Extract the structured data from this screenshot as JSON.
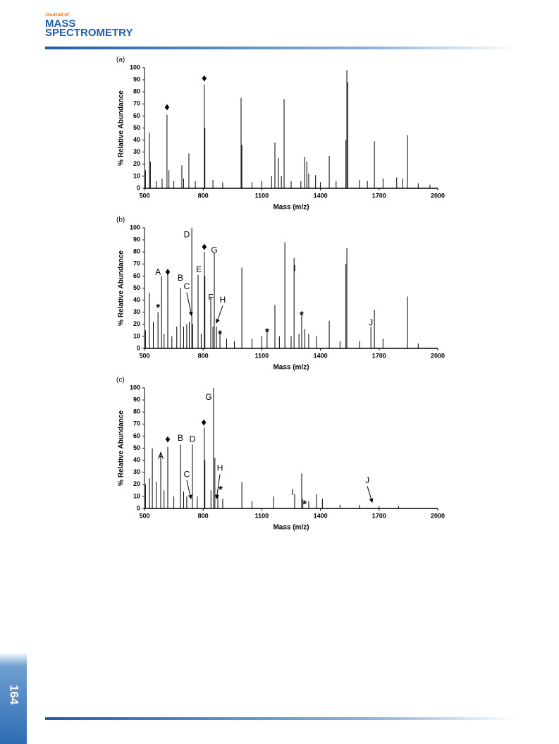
{
  "header": {
    "journal_of": "Journal of",
    "title_line1": "MASS",
    "title_line2": "SPECTROMETRY"
  },
  "page_number": "164",
  "chart_data": [
    {
      "type": "bar",
      "title": "(a)",
      "x_label": "Mass (m/z)",
      "y_label": "% Relative Abundance",
      "color": "#000000",
      "xlim": [
        500,
        2000
      ],
      "xticks": [
        500,
        800,
        1100,
        1400,
        1700,
        2000
      ],
      "ylim": [
        0,
        100
      ],
      "yticks": [
        0,
        10,
        20,
        30,
        40,
        50,
        60,
        70,
        80,
        90,
        100
      ],
      "x": [
        505,
        525,
        530,
        560,
        590,
        615,
        625,
        650,
        691,
        700,
        727,
        760,
        806,
        809,
        850,
        900,
        994,
        998,
        1050,
        1100,
        1150,
        1167,
        1185,
        1200,
        1214,
        1250,
        1300,
        1319,
        1330,
        1340,
        1375,
        1400,
        1445,
        1480,
        1530,
        1535,
        1540,
        1600,
        1640,
        1676,
        1720,
        1790,
        1820,
        1845,
        1900,
        1960
      ],
      "values": [
        15,
        46,
        22,
        6,
        8,
        61,
        15,
        6,
        19,
        8,
        29,
        6,
        86,
        50,
        7,
        5,
        75,
        36,
        5,
        6,
        10,
        38,
        25,
        10,
        74,
        6,
        6,
        26,
        22,
        12,
        11,
        5,
        27,
        6,
        40,
        98,
        88,
        7,
        6,
        39,
        8,
        9,
        8,
        44,
        4,
        3
      ],
      "annotations": [
        {
          "text": "♦",
          "x": 615,
          "y": 67
        },
        {
          "text": "♦",
          "x": 806,
          "y": 91
        }
      ]
    },
    {
      "type": "bar",
      "title": "(b)",
      "x_label": "Mass (m/z)",
      "y_label": "% Relative Abundance",
      "color": "#000000",
      "xlim": [
        500,
        2000
      ],
      "xticks": [
        500,
        800,
        1100,
        1400,
        1700,
        2000
      ],
      "ylim": [
        0,
        100
      ],
      "yticks": [
        0,
        10,
        20,
        30,
        40,
        50,
        60,
        70,
        80,
        90,
        100
      ],
      "x": [
        505,
        525,
        545,
        569,
        587,
        600,
        619,
        640,
        665,
        684,
        700,
        716,
        729,
        742,
        746,
        774,
        790,
        806,
        809,
        839,
        850,
        857,
        868,
        886,
        920,
        960,
        998,
        1050,
        1100,
        1127,
        1167,
        1190,
        1218,
        1250,
        1265,
        1290,
        1304,
        1320,
        1340,
        1380,
        1445,
        1500,
        1530,
        1535,
        1600,
        1658,
        1676,
        1720,
        1845,
        1900
      ],
      "values": [
        15,
        46,
        22,
        30,
        60,
        12,
        64,
        10,
        18,
        50,
        18,
        20,
        22,
        100,
        20,
        61,
        12,
        80,
        60,
        42,
        18,
        79,
        18,
        13,
        8,
        6,
        67,
        8,
        10,
        15,
        36,
        10,
        88,
        10,
        75,
        12,
        28,
        16,
        12,
        10,
        23,
        6,
        70,
        83,
        6,
        18,
        32,
        8,
        43,
        4
      ],
      "annotations": [
        {
          "text": "A",
          "x": 569,
          "y": 63
        },
        {
          "text": "♦",
          "x": 619,
          "y": 63
        },
        {
          "text": "B",
          "x": 684,
          "y": 58
        },
        {
          "text": "C",
          "x": 716,
          "y": 51,
          "arrow_to": {
            "x": 741,
            "y": 27
          }
        },
        {
          "text": "D",
          "x": 716,
          "y": 94
        },
        {
          "text": "E",
          "x": 778,
          "y": 65
        },
        {
          "text": "♦",
          "x": 806,
          "y": 84
        },
        {
          "text": "G",
          "x": 857,
          "y": 81
        },
        {
          "text": "F",
          "x": 839,
          "y": 42
        },
        {
          "text": "H",
          "x": 900,
          "y": 40,
          "arrow_to": {
            "x": 868,
            "y": 21
          }
        },
        {
          "text": "*",
          "x": 569,
          "y": 35
        },
        {
          "text": "*",
          "x": 886,
          "y": 13
        },
        {
          "text": "*",
          "x": 1127,
          "y": 15
        },
        {
          "text": "*",
          "x": 1304,
          "y": 29
        },
        {
          "text": "I",
          "x": 1268,
          "y": 66
        },
        {
          "text": "J",
          "x": 1658,
          "y": 21
        }
      ]
    },
    {
      "type": "bar",
      "title": "(c)",
      "x_label": "Mass (m/z)",
      "y_label": "% Relative Abundance",
      "color": "#000000",
      "xlim": [
        500,
        2000
      ],
      "xticks": [
        500,
        800,
        1100,
        1400,
        1700,
        2000
      ],
      "ylim": [
        0,
        100
      ],
      "yticks": [
        0,
        10,
        20,
        30,
        40,
        50,
        60,
        70,
        80,
        90,
        100
      ],
      "x": [
        505,
        525,
        540,
        560,
        583,
        600,
        619,
        650,
        684,
        700,
        716,
        745,
        770,
        806,
        809,
        840,
        853,
        860,
        875,
        900,
        998,
        1050,
        1160,
        1268,
        1304,
        1310,
        1340,
        1380,
        1410,
        1500,
        1600,
        1700,
        1800
      ],
      "values": [
        20,
        25,
        50,
        22,
        47,
        15,
        51,
        10,
        53,
        14,
        10,
        53,
        10,
        67,
        40,
        15,
        100,
        42,
        12,
        8,
        22,
        6,
        10,
        12,
        29,
        8,
        6,
        12,
        8,
        3,
        3,
        2,
        2
      ],
      "annotations": [
        {
          "text": "♦",
          "x": 619,
          "y": 57
        },
        {
          "text": "A",
          "x": 583,
          "y": 43
        },
        {
          "text": "B",
          "x": 684,
          "y": 58
        },
        {
          "text": "D",
          "x": 745,
          "y": 57
        },
        {
          "text": "G",
          "x": 828,
          "y": 92
        },
        {
          "text": "♦",
          "x": 803,
          "y": 71
        },
        {
          "text": "C",
          "x": 716,
          "y": 28,
          "arrow_to": {
            "x": 738,
            "y": 8
          }
        },
        {
          "text": "H",
          "x": 886,
          "y": 33,
          "arrow_to": {
            "x": 868,
            "y": 8
          }
        },
        {
          "text": "*",
          "x": 889,
          "y": 17
        },
        {
          "text": "I",
          "x": 1257,
          "y": 13
        },
        {
          "text": "*",
          "x": 1319,
          "y": 5
        },
        {
          "text": "J",
          "x": 1640,
          "y": 23,
          "arrow_to": {
            "x": 1665,
            "y": 5
          }
        }
      ]
    }
  ]
}
